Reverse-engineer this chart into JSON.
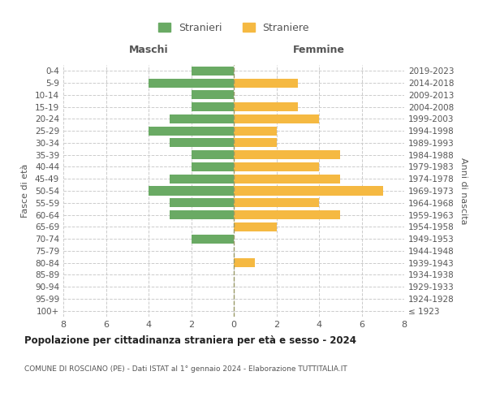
{
  "age_groups": [
    "100+",
    "95-99",
    "90-94",
    "85-89",
    "80-84",
    "75-79",
    "70-74",
    "65-69",
    "60-64",
    "55-59",
    "50-54",
    "45-49",
    "40-44",
    "35-39",
    "30-34",
    "25-29",
    "20-24",
    "15-19",
    "10-14",
    "5-9",
    "0-4"
  ],
  "birth_years": [
    "≤ 1923",
    "1924-1928",
    "1929-1933",
    "1934-1938",
    "1939-1943",
    "1944-1948",
    "1949-1953",
    "1954-1958",
    "1959-1963",
    "1964-1968",
    "1969-1973",
    "1974-1978",
    "1979-1983",
    "1984-1988",
    "1989-1993",
    "1994-1998",
    "1999-2003",
    "2004-2008",
    "2009-2013",
    "2014-2018",
    "2019-2023"
  ],
  "males": [
    0,
    0,
    0,
    0,
    0,
    0,
    2,
    0,
    3,
    3,
    4,
    3,
    2,
    2,
    3,
    4,
    3,
    2,
    2,
    4,
    2
  ],
  "females": [
    0,
    0,
    0,
    0,
    1,
    0,
    0,
    2,
    5,
    4,
    7,
    5,
    4,
    5,
    2,
    2,
    4,
    3,
    0,
    3,
    0
  ],
  "male_color": "#6aaa64",
  "female_color": "#f5b942",
  "grid_color": "#cccccc",
  "text_color": "#555555",
  "bg_color": "#ffffff",
  "title": "Popolazione per cittadinanza straniera per età e sesso - 2024",
  "subtitle": "COMUNE DI ROSCIANO (PE) - Dati ISTAT al 1° gennaio 2024 - Elaborazione TUTTITALIA.IT",
  "xlabel_left": "Maschi",
  "xlabel_right": "Femmine",
  "ylabel_left": "Fasce di età",
  "ylabel_right": "Anni di nascita",
  "legend_males": "Stranieri",
  "legend_females": "Straniere",
  "xlim": 8,
  "bar_height": 0.75
}
